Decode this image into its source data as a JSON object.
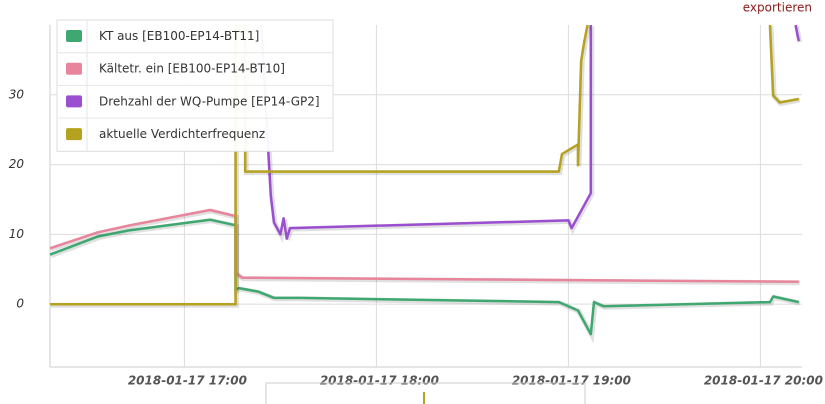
{
  "chart_data": {
    "type": "line",
    "export_label": "exportieren",
    "xlim": [
      "2018-01-17 16:18",
      "2018-01-17 20:13"
    ],
    "xticks": [
      "2018-01-17 17:00",
      "2018-01-17 18:00",
      "2018-01-17 19:00",
      "2018-01-17 20:00"
    ],
    "ylim": [
      -9,
      40
    ],
    "yticks": [
      0,
      10,
      20,
      30
    ],
    "grid": true,
    "legend": "top-left",
    "series": [
      {
        "name": "KT aus [EB100-EP14-BT11]",
        "color": "#3ea870",
        "x": [
          "2018-01-17 16:18",
          "2018-01-17 16:33",
          "2018-01-17 16:43",
          "2018-01-17 17:08",
          "2018-01-17 17:16",
          "2018-01-17 17:16",
          "2018-01-17 17:17",
          "2018-01-17 17:23",
          "2018-01-17 17:28",
          "2018-01-17 17:36",
          "2018-01-17 18:57",
          "2018-01-17 19:03",
          "2018-01-17 19:07",
          "2018-01-17 19:08",
          "2018-01-17 19:11",
          "2018-01-17 20:03",
          "2018-01-17 20:04",
          "2018-01-17 20:12"
        ],
        "values": [
          7.1,
          9.7,
          10.6,
          12.1,
          11.3,
          2,
          2.3,
          1.8,
          0.9,
          0.9,
          0.3,
          -0.9,
          -4.3,
          0.3,
          -0.3,
          0.3,
          1.1,
          0.3
        ]
      },
      {
        "name": "Kältetr. ein [EB100-EP14-BT10]",
        "color": "#e8849b",
        "x": [
          "2018-01-17 16:18",
          "2018-01-17 16:33",
          "2018-01-17 16:43",
          "2018-01-17 17:08",
          "2018-01-17 17:16",
          "2018-01-17 17:16",
          "2018-01-17 17:18",
          "2018-01-17 20:12"
        ],
        "values": [
          8,
          10.3,
          11.3,
          13.5,
          12.6,
          4.5,
          3.8,
          3.2
        ]
      },
      {
        "name": "Drehzahl der WQ-Pumpe [EP14-GP2]",
        "color": "#9b4fd0",
        "x": [
          "2018-01-17 17:24",
          "2018-01-17 17:27",
          "2018-01-17 17:28",
          "2018-01-17 17:30",
          "2018-01-17 17:31",
          "2018-01-17 17:32",
          "2018-01-17 17:33",
          "2018-01-17 19:00",
          "2018-01-17 19:01",
          "2018-01-17 19:07",
          "2018-01-17 19:07",
          "2018-01-17 20:10",
          "2018-01-17 20:11",
          "2018-01-17 20:12"
        ],
        "values": [
          40,
          15.6,
          11.7,
          10,
          12.3,
          9.4,
          10.9,
          12,
          10.9,
          15.9,
          40,
          null,
          40,
          37.7
        ]
      },
      {
        "name": "aktuelle Verdichterfrequenz",
        "color": "#b5a21e",
        "x": [
          "2018-01-17 16:18",
          "2018-01-17 17:16",
          "2018-01-17 17:16",
          "2018-01-17 17:19",
          "2018-01-17 17:19",
          "2018-01-17 18:57",
          "2018-01-17 18:58",
          "2018-01-17 19:03",
          "2018-01-17 19:03",
          "2018-01-17 19:04",
          "2018-01-17 19:05",
          "2018-01-17 19:06",
          "2018-01-17 20:02",
          "2018-01-17 20:03",
          "2018-01-17 20:04",
          "2018-01-17 20:06",
          "2018-01-17 20:12"
        ],
        "values": [
          0,
          0,
          40,
          40,
          19,
          19,
          21.5,
          22.9,
          19.9,
          34.9,
          37.7,
          40,
          null,
          40,
          29.9,
          28.9,
          29.4
        ]
      }
    ]
  }
}
